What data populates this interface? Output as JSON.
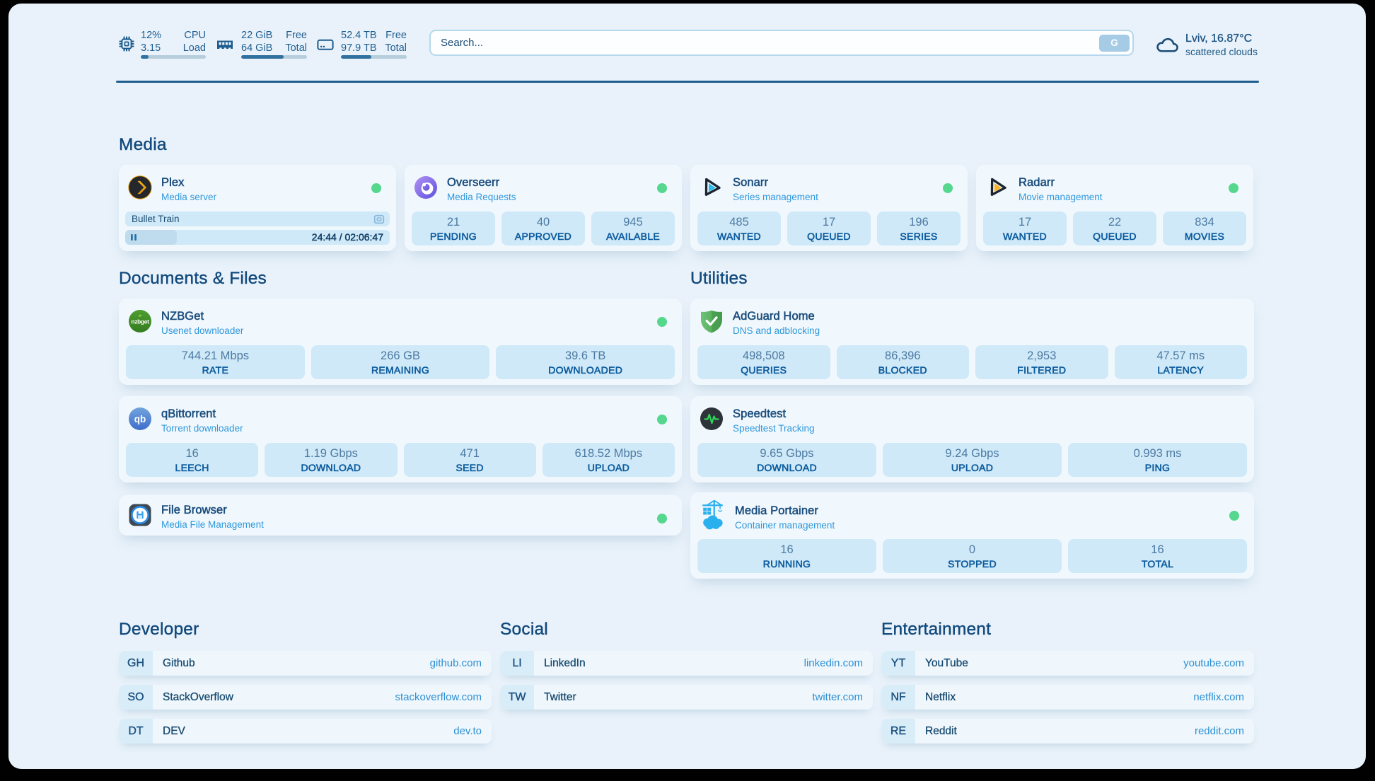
{
  "topbar": {
    "cpu": {
      "icon": "cpu-chip-icon",
      "values": [
        "12%",
        "3.15"
      ],
      "labels": [
        "CPU",
        "Load"
      ],
      "percent": 12
    },
    "memory": {
      "icon": "ram-icon",
      "values": [
        "22 GiB",
        "64 GiB"
      ],
      "labels": [
        "Free",
        "Total"
      ],
      "percent": 65
    },
    "disk": {
      "icon": "hard-drive-icon",
      "values": [
        "52.4 TB",
        "97.9 TB"
      ],
      "labels": [
        "Free",
        "Total"
      ],
      "percent": 46
    },
    "search": {
      "placeholder": "Search...",
      "button_label": "G"
    },
    "weather": {
      "icon": "cloud-icon",
      "location_temp": "Lviv, 16.87°C",
      "condition": "scattered clouds"
    }
  },
  "sections": {
    "media": {
      "title": "Media",
      "apps": {
        "plex": {
          "name": "Plex",
          "description": "Media server",
          "status": "online",
          "now_playing": {
            "title": "Bullet Train",
            "time": "24:44 / 02:06:47",
            "progress_percent": 19.5
          }
        },
        "overseerr": {
          "name": "Overseerr",
          "description": "Media Requests",
          "status": "online",
          "stats": [
            {
              "value": "21",
              "label": "PENDING"
            },
            {
              "value": "40",
              "label": "APPROVED"
            },
            {
              "value": "945",
              "label": "AVAILABLE"
            }
          ]
        },
        "sonarr": {
          "name": "Sonarr",
          "description": "Series management",
          "status": "online",
          "stats": [
            {
              "value": "485",
              "label": "WANTED"
            },
            {
              "value": "17",
              "label": "QUEUED"
            },
            {
              "value": "196",
              "label": "SERIES"
            }
          ]
        },
        "radarr": {
          "name": "Radarr",
          "description": "Movie management",
          "status": "online",
          "stats": [
            {
              "value": "17",
              "label": "WANTED"
            },
            {
              "value": "22",
              "label": "QUEUED"
            },
            {
              "value": "834",
              "label": "MOVIES"
            }
          ]
        }
      }
    },
    "documents": {
      "title": "Documents & Files",
      "apps": {
        "nzbget": {
          "name": "NZBGet",
          "description": "Usenet downloader",
          "status": "online",
          "stats": [
            {
              "value": "744.21 Mbps",
              "label": "RATE"
            },
            {
              "value": "266 GB",
              "label": "REMAINING"
            },
            {
              "value": "39.6 TB",
              "label": "DOWNLOADED"
            }
          ]
        },
        "qbittorrent": {
          "name": "qBittorrent",
          "description": "Torrent downloader",
          "status": "online",
          "stats": [
            {
              "value": "16",
              "label": "LEECH"
            },
            {
              "value": "1.19 Gbps",
              "label": "DOWNLOAD"
            },
            {
              "value": "471",
              "label": "SEED"
            },
            {
              "value": "618.52 Mbps",
              "label": "UPLOAD"
            }
          ]
        },
        "filebrowser": {
          "name": "File Browser",
          "description": "Media File Management",
          "status": "online"
        }
      }
    },
    "utilities": {
      "title": "Utilities",
      "apps": {
        "adguard": {
          "name": "AdGuard Home",
          "description": "DNS and adblocking",
          "stats": [
            {
              "value": "498,508",
              "label": "QUERIES"
            },
            {
              "value": "86,396",
              "label": "BLOCKED"
            },
            {
              "value": "2,953",
              "label": "FILTERED"
            },
            {
              "value": "47.57 ms",
              "label": "LATENCY"
            }
          ]
        },
        "speedtest": {
          "name": "Speedtest",
          "description": "Speedtest Tracking",
          "stats": [
            {
              "value": "9.65 Gbps",
              "label": "DOWNLOAD"
            },
            {
              "value": "9.24 Gbps",
              "label": "UPLOAD"
            },
            {
              "value": "0.993 ms",
              "label": "PING"
            }
          ]
        },
        "portainer": {
          "name": "Media Portainer",
          "description": "Container management",
          "status": "online",
          "stats": [
            {
              "value": "16",
              "label": "RUNNING"
            },
            {
              "value": "0",
              "label": "STOPPED"
            },
            {
              "value": "16",
              "label": "TOTAL"
            }
          ]
        }
      }
    },
    "bookmarks": [
      {
        "title": "Developer",
        "items": [
          {
            "abbr": "GH",
            "name": "Github",
            "url": "github.com"
          },
          {
            "abbr": "SO",
            "name": "StackOverflow",
            "url": "stackoverflow.com"
          },
          {
            "abbr": "DT",
            "name": "DEV",
            "url": "dev.to"
          }
        ]
      },
      {
        "title": "Social",
        "items": [
          {
            "abbr": "LI",
            "name": "LinkedIn",
            "url": "linkedin.com"
          },
          {
            "abbr": "TW",
            "name": "Twitter",
            "url": "twitter.com"
          }
        ]
      },
      {
        "title": "Entertainment",
        "items": [
          {
            "abbr": "YT",
            "name": "YouTube",
            "url": "youtube.com"
          },
          {
            "abbr": "NF",
            "name": "Netflix",
            "url": "netflix.com"
          },
          {
            "abbr": "RE",
            "name": "Reddit",
            "url": "reddit.com"
          }
        ]
      }
    ]
  }
}
